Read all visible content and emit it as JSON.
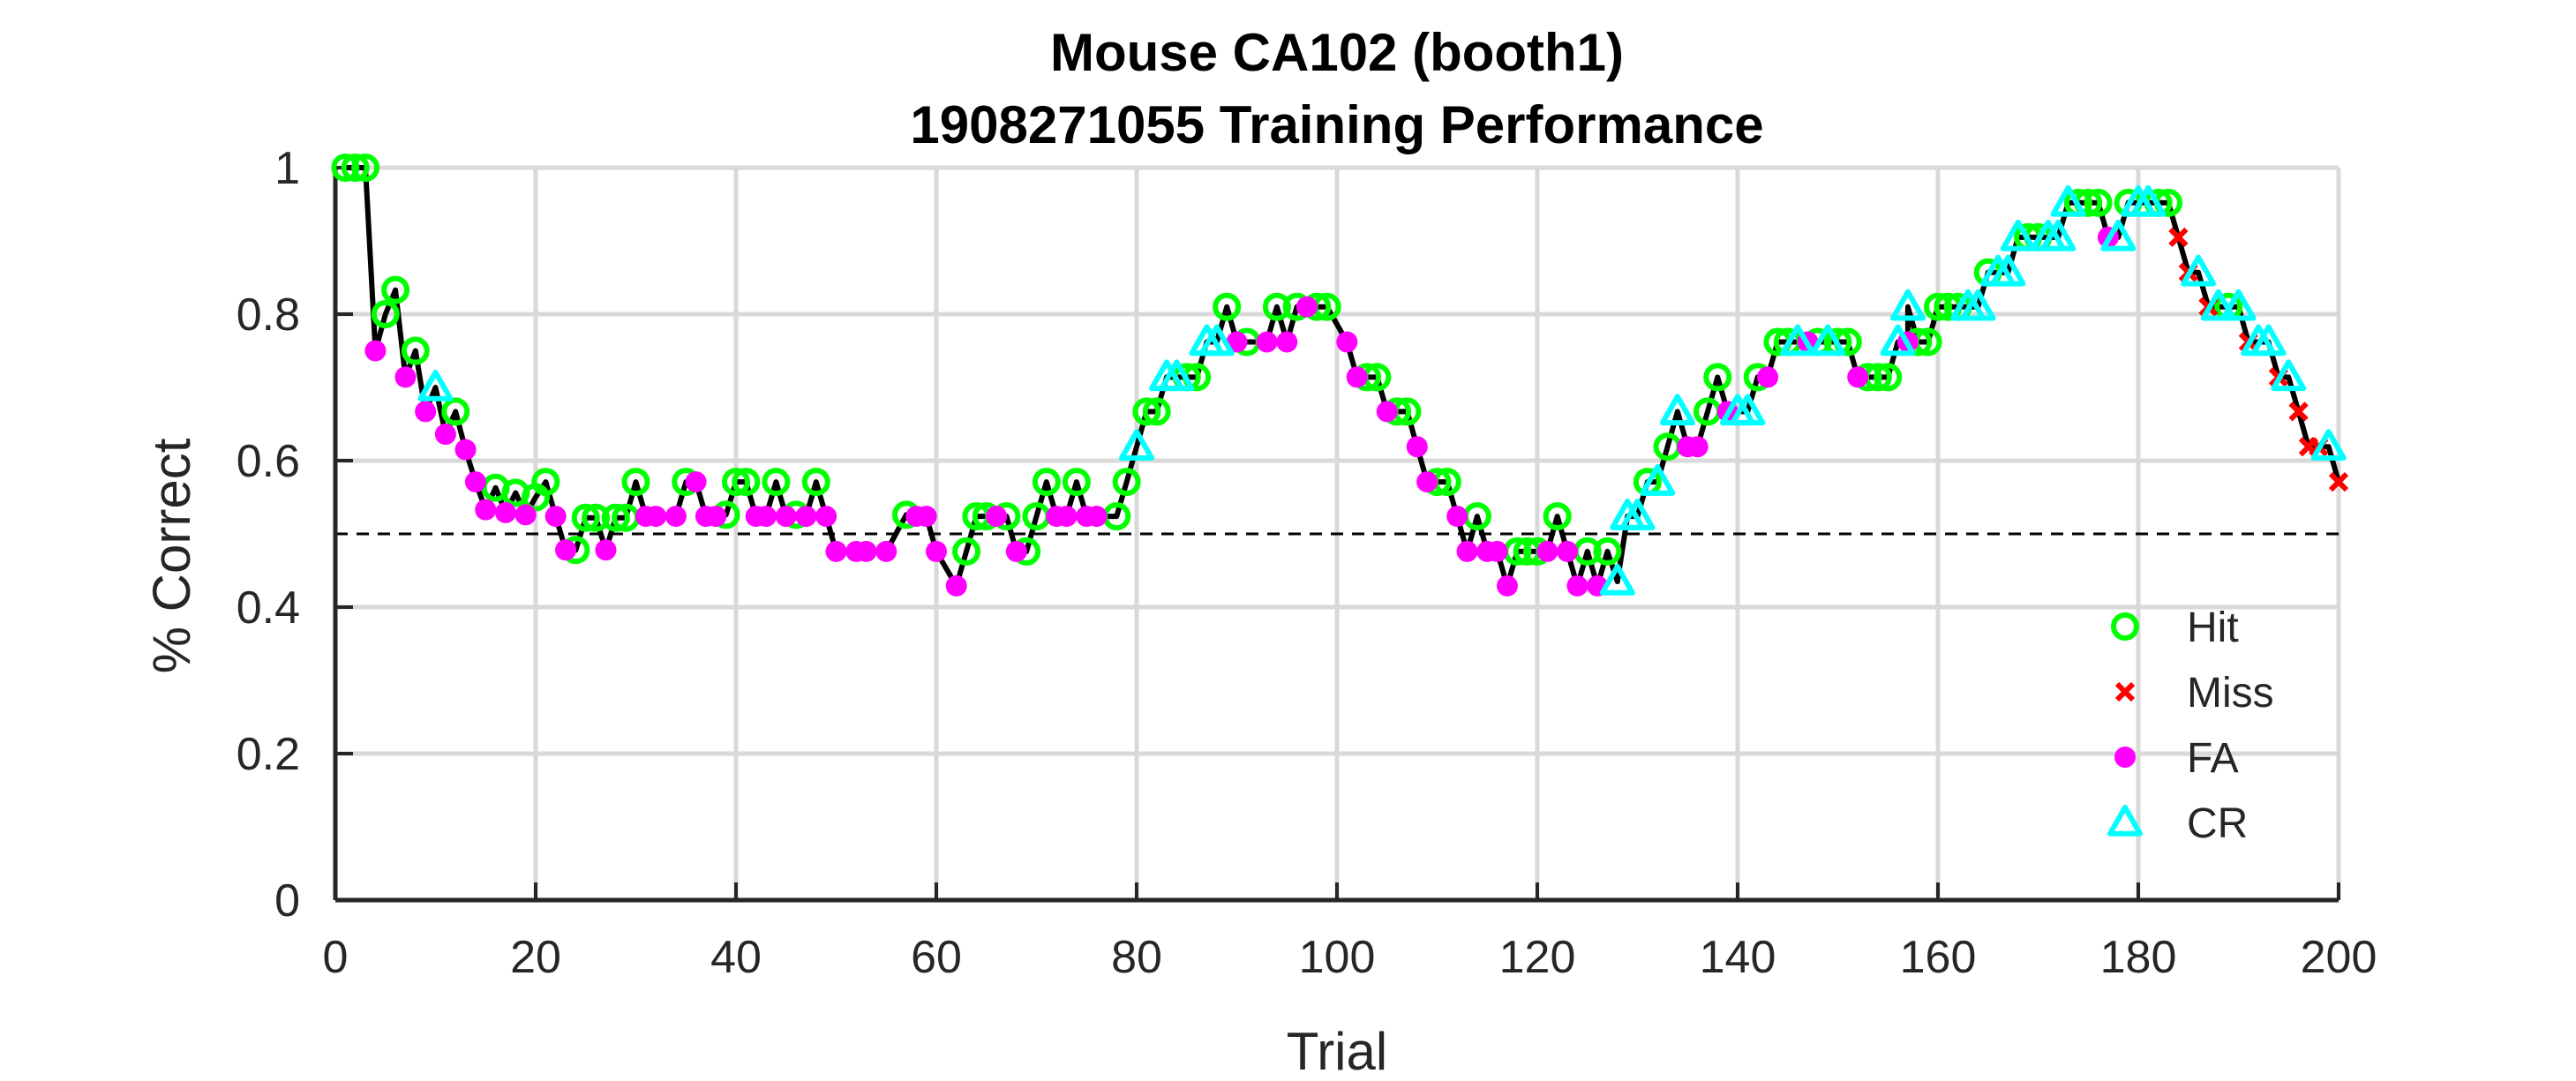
{
  "chart_data": {
    "type": "scatter",
    "title": "Mouse CA102 (booth1)",
    "subtitle": "1908271055 Training Performance",
    "xlabel": "Trial",
    "ylabel": "% Correct",
    "xlim": [
      0,
      200
    ],
    "ylim": [
      0,
      1
    ],
    "xticks": [
      0,
      20,
      40,
      60,
      80,
      100,
      120,
      140,
      160,
      180,
      200
    ],
    "yticks": [
      0,
      0.2,
      0.4,
      0.6,
      0.8,
      1
    ],
    "ytick_labels": [
      "0",
      "0.2",
      "0.4",
      "0.6",
      "0.8",
      "1"
    ],
    "grid": true,
    "legend_position": "bottom-right",
    "chance_line": 0.5,
    "colors": {
      "line": "#000000",
      "hit": "#00ff00",
      "miss": "#ff0000",
      "fa": "#ff00ff",
      "cr": "#00ffff",
      "grid": "#d9d9d9",
      "axis": "#262626"
    },
    "series": [
      {
        "name": "Hit",
        "marker": "circle",
        "points": [
          [
            1,
            1
          ],
          [
            2,
            1
          ],
          [
            3,
            1
          ],
          [
            5,
            0.8
          ],
          [
            6,
            0.833
          ],
          [
            8,
            0.75
          ],
          [
            12,
            0.667
          ],
          [
            16,
            0.563
          ],
          [
            18,
            0.556
          ],
          [
            20,
            0.55
          ],
          [
            21,
            0.571
          ],
          [
            24,
            0.478
          ],
          [
            25,
            0.522
          ],
          [
            26,
            0.522
          ],
          [
            28,
            0.522
          ],
          [
            29,
            0.522
          ],
          [
            30,
            0.571
          ],
          [
            35,
            0.571
          ],
          [
            39,
            0.526
          ],
          [
            40,
            0.571
          ],
          [
            41,
            0.571
          ],
          [
            44,
            0.571
          ],
          [
            46,
            0.526
          ],
          [
            48,
            0.571
          ],
          [
            57,
            0.526
          ],
          [
            63,
            0.476
          ],
          [
            64,
            0.524
          ],
          [
            65,
            0.524
          ],
          [
            67,
            0.524
          ],
          [
            69,
            0.476
          ],
          [
            70,
            0.524
          ],
          [
            71,
            0.571
          ],
          [
            74,
            0.571
          ],
          [
            78,
            0.524
          ],
          [
            79,
            0.571
          ],
          [
            81,
            0.667
          ],
          [
            82,
            0.667
          ],
          [
            85,
            0.714
          ],
          [
            86,
            0.714
          ],
          [
            89,
            0.81
          ],
          [
            91,
            0.762
          ],
          [
            94,
            0.81
          ],
          [
            96,
            0.81
          ],
          [
            98,
            0.81
          ],
          [
            99,
            0.81
          ],
          [
            103,
            0.714
          ],
          [
            104,
            0.714
          ],
          [
            106,
            0.667
          ],
          [
            107,
            0.667
          ],
          [
            110,
            0.571
          ],
          [
            111,
            0.571
          ],
          [
            114,
            0.524
          ],
          [
            118,
            0.476
          ],
          [
            119,
            0.476
          ],
          [
            120,
            0.476
          ],
          [
            122,
            0.524
          ],
          [
            125,
            0.476
          ],
          [
            127,
            0.476
          ],
          [
            131,
            0.571
          ],
          [
            133,
            0.619
          ],
          [
            137,
            0.667
          ],
          [
            138,
            0.714
          ],
          [
            142,
            0.714
          ],
          [
            144,
            0.762
          ],
          [
            145,
            0.762
          ],
          [
            148,
            0.762
          ],
          [
            150,
            0.762
          ],
          [
            151,
            0.762
          ],
          [
            153,
            0.714
          ],
          [
            154,
            0.714
          ],
          [
            155,
            0.714
          ],
          [
            158,
            0.762
          ],
          [
            159,
            0.762
          ],
          [
            160,
            0.81
          ],
          [
            161,
            0.81
          ],
          [
            162,
            0.81
          ],
          [
            165,
            0.857
          ],
          [
            169,
            0.905
          ],
          [
            170,
            0.905
          ],
          [
            174,
            0.952
          ],
          [
            175,
            0.952
          ],
          [
            176,
            0.952
          ],
          [
            179,
            0.952
          ],
          [
            182,
            0.952
          ],
          [
            183,
            0.952
          ],
          [
            189,
            0.81
          ]
        ]
      },
      {
        "name": "Miss",
        "marker": "x",
        "points": [
          [
            184,
            0.905
          ],
          [
            185,
            0.857
          ],
          [
            187,
            0.81
          ],
          [
            191,
            0.762
          ],
          [
            194,
            0.714
          ],
          [
            196,
            0.667
          ],
          [
            197,
            0.619
          ],
          [
            198,
            0.619
          ],
          [
            200,
            0.571
          ]
        ]
      },
      {
        "name": "FA",
        "marker": "dot",
        "points": [
          [
            4,
            0.75
          ],
          [
            7,
            0.714
          ],
          [
            9,
            0.667
          ],
          [
            11,
            0.636
          ],
          [
            13,
            0.615
          ],
          [
            14,
            0.571
          ],
          [
            15,
            0.533
          ],
          [
            17,
            0.529
          ],
          [
            19,
            0.526
          ],
          [
            22,
            0.524
          ],
          [
            23,
            0.478
          ],
          [
            27,
            0.478
          ],
          [
            31,
            0.524
          ],
          [
            32,
            0.524
          ],
          [
            34,
            0.524
          ],
          [
            36,
            0.571
          ],
          [
            37,
            0.524
          ],
          [
            38,
            0.524
          ],
          [
            42,
            0.524
          ],
          [
            43,
            0.524
          ],
          [
            45,
            0.524
          ],
          [
            47,
            0.524
          ],
          [
            49,
            0.524
          ],
          [
            50,
            0.476
          ],
          [
            52,
            0.476
          ],
          [
            53,
            0.476
          ],
          [
            55,
            0.476
          ],
          [
            58,
            0.524
          ],
          [
            59,
            0.524
          ],
          [
            60,
            0.476
          ],
          [
            62,
            0.429
          ],
          [
            66,
            0.524
          ],
          [
            68,
            0.476
          ],
          [
            72,
            0.524
          ],
          [
            73,
            0.524
          ],
          [
            75,
            0.524
          ],
          [
            76,
            0.524
          ],
          [
            90,
            0.762
          ],
          [
            93,
            0.762
          ],
          [
            95,
            0.762
          ],
          [
            97,
            0.81
          ],
          [
            101,
            0.762
          ],
          [
            102,
            0.714
          ],
          [
            105,
            0.667
          ],
          [
            108,
            0.619
          ],
          [
            109,
            0.571
          ],
          [
            112,
            0.524
          ],
          [
            113,
            0.476
          ],
          [
            115,
            0.476
          ],
          [
            116,
            0.476
          ],
          [
            117,
            0.429
          ],
          [
            121,
            0.476
          ],
          [
            123,
            0.476
          ],
          [
            124,
            0.429
          ],
          [
            126,
            0.429
          ],
          [
            135,
            0.619
          ],
          [
            136,
            0.619
          ],
          [
            139,
            0.667
          ],
          [
            143,
            0.714
          ],
          [
            147,
            0.762
          ],
          [
            152,
            0.714
          ],
          [
            157,
            0.762
          ],
          [
            177,
            0.905
          ]
        ]
      },
      {
        "name": "CR",
        "marker": "triangle",
        "points": [
          [
            10,
            0.7
          ],
          [
            80,
            0.619
          ],
          [
            83,
            0.714
          ],
          [
            84,
            0.714
          ],
          [
            87,
            0.762
          ],
          [
            88,
            0.762
          ],
          [
            128,
            0.435
          ],
          [
            129,
            0.524
          ],
          [
            130,
            0.524
          ],
          [
            132,
            0.571
          ],
          [
            134,
            0.667
          ],
          [
            140,
            0.667
          ],
          [
            141,
            0.667
          ],
          [
            146,
            0.762
          ],
          [
            149,
            0.762
          ],
          [
            156,
            0.762
          ],
          [
            157,
            0.81
          ],
          [
            163,
            0.81
          ],
          [
            164,
            0.81
          ],
          [
            166,
            0.857
          ],
          [
            167,
            0.857
          ],
          [
            168,
            0.905
          ],
          [
            171,
            0.905
          ],
          [
            172,
            0.905
          ],
          [
            173,
            0.952
          ],
          [
            178,
            0.905
          ],
          [
            180,
            0.952
          ],
          [
            181,
            0.952
          ],
          [
            186,
            0.857
          ],
          [
            188,
            0.81
          ],
          [
            190,
            0.81
          ],
          [
            192,
            0.762
          ],
          [
            193,
            0.762
          ],
          [
            195,
            0.714
          ],
          [
            199,
            0.619
          ]
        ]
      }
    ]
  }
}
